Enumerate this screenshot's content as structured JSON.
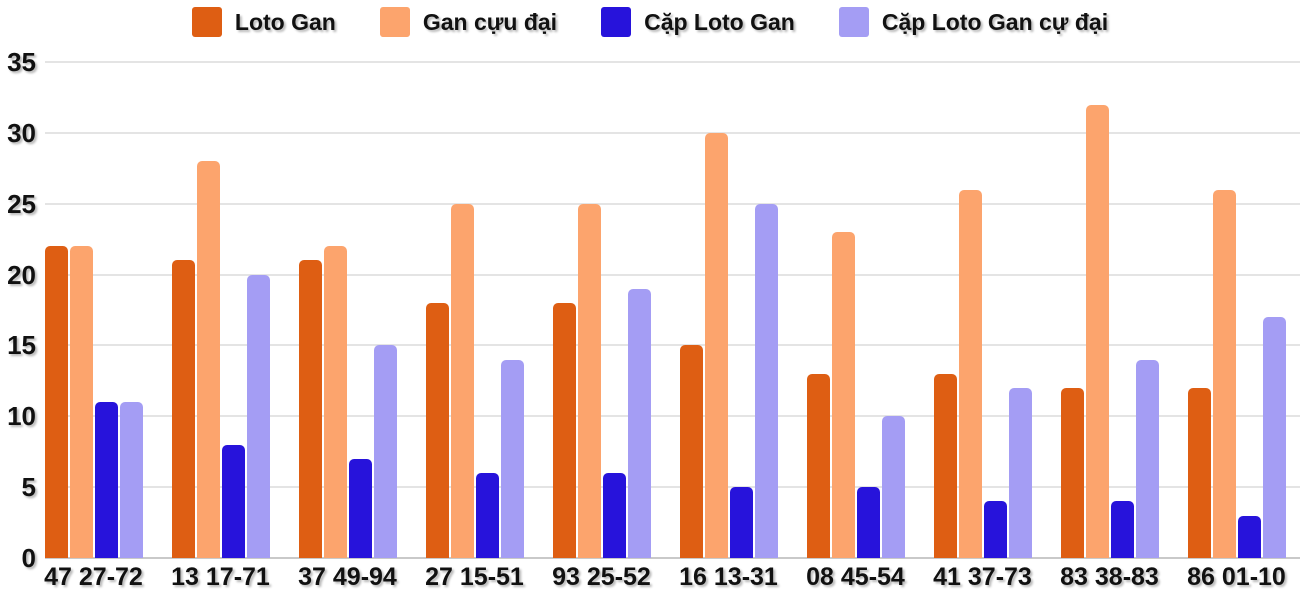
{
  "colors": {
    "loto_gan": "#de5e13",
    "gan_cuu_dai": "#fca46d",
    "cap_loto_gan": "#2713db",
    "cap_loto_gan_cu_dai": "#a49df4",
    "gridline": "#e4e4e4",
    "baseline": "#c9c9c9",
    "text": "#111111"
  },
  "chart_data": {
    "type": "bar",
    "categories": [
      "47 27-72",
      "13 17-71",
      "37 49-94",
      "27 15-51",
      "93 25-52",
      "16 13-31",
      "08 45-54",
      "41 37-73",
      "83 38-83",
      "86 01-10"
    ],
    "series": [
      {
        "name": "Loto Gan",
        "color": "#de5e13",
        "values": [
          22,
          21,
          21,
          18,
          18,
          15,
          13,
          13,
          12,
          12
        ]
      },
      {
        "name": "Gan cựu đại",
        "color": "#fca46d",
        "values": [
          22,
          28,
          22,
          25,
          25,
          30,
          23,
          26,
          32,
          26
        ]
      },
      {
        "name": "Cặp Loto Gan",
        "color": "#2713db",
        "values": [
          11,
          8,
          7,
          6,
          6,
          5,
          5,
          4,
          4,
          3
        ]
      },
      {
        "name": "Cặp Loto Gan cự đại",
        "color": "#a49df4",
        "values": [
          11,
          20,
          15,
          14,
          19,
          25,
          10,
          12,
          14,
          17
        ]
      }
    ],
    "title": "",
    "xlabel": "",
    "ylabel": "",
    "ylim": [
      0,
      35
    ],
    "yticks": [
      0,
      5,
      10,
      15,
      20,
      25,
      30,
      35
    ],
    "grid": true,
    "legend_position": "top"
  }
}
